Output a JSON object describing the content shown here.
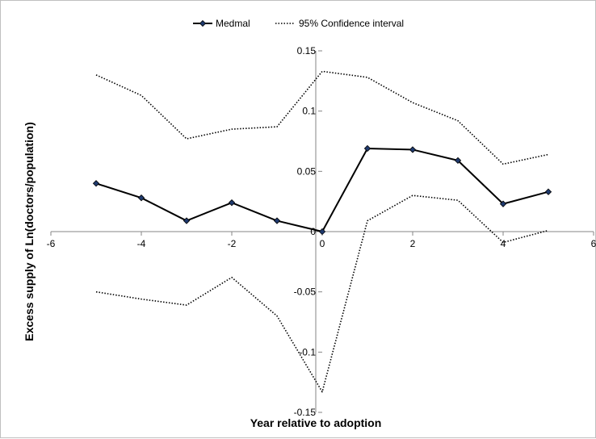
{
  "chart_data": {
    "type": "line",
    "title": "",
    "xlabel": "Year relative to adoption",
    "ylabel": "Excess supply of Ln(doctors/population)",
    "xlim": [
      -6,
      6
    ],
    "ylim": [
      -0.15,
      0.15
    ],
    "x_ticks": [
      -6,
      -4,
      -2,
      0,
      2,
      4,
      6
    ],
    "y_ticks": [
      -0.15,
      -0.1,
      -0.05,
      0,
      0.05,
      0.1,
      0.15
    ],
    "x_tick_labels": [
      "-6",
      "-4",
      "-2",
      "0",
      "2",
      "4",
      "6"
    ],
    "y_tick_labels": [
      "-0.15",
      "-0.1",
      "-0.05",
      "0",
      "0.05",
      "0.1",
      "0.15"
    ],
    "grid": false,
    "legend_position": "top",
    "x": [
      -5,
      -4,
      -3,
      -2,
      -1,
      0,
      1,
      2,
      3,
      4,
      5
    ],
    "series": [
      {
        "name": "Medmal",
        "style": "solid",
        "marker": "diamond",
        "color": "#000000",
        "values": [
          0.04,
          0.028,
          0.009,
          0.024,
          0.009,
          0.0,
          0.069,
          0.068,
          0.059,
          0.023,
          0.033
        ]
      },
      {
        "name": "95% Confidence interval",
        "style": "dotted",
        "color": "#000000",
        "values": [
          0.13,
          0.113,
          0.077,
          0.085,
          0.087,
          0.133,
          0.128,
          0.107,
          0.092,
          0.056,
          0.064
        ]
      },
      {
        "name": "",
        "style": "dotted",
        "color": "#000000",
        "values": [
          -0.05,
          -0.056,
          -0.061,
          -0.038,
          -0.07,
          -0.133,
          0.009,
          0.03,
          0.026,
          -0.009,
          0.001
        ]
      }
    ]
  }
}
